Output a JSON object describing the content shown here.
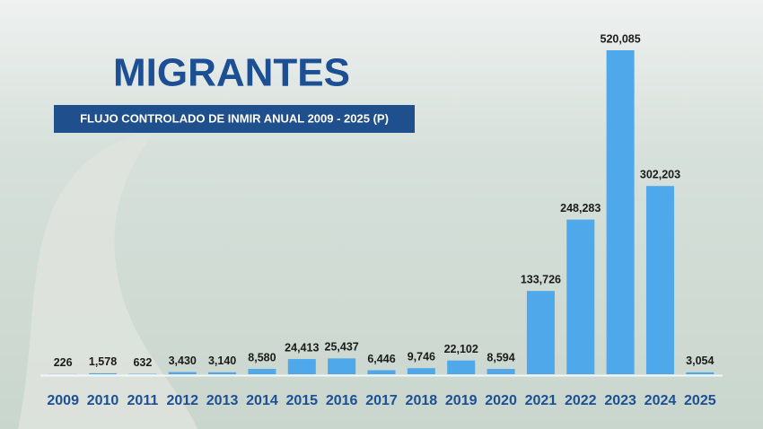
{
  "chart_data": {
    "type": "bar",
    "title": "MIGRANTES",
    "subtitle": "FLUJO CONTROLADO DE INMIR ANUAL 2009 - 2025 (P)",
    "categories": [
      "2009",
      "2010",
      "2011",
      "2012",
      "2013",
      "2014",
      "2015",
      "2016",
      "2017",
      "2018",
      "2019",
      "2020",
      "2021",
      "2022",
      "2023",
      "2024",
      "2025"
    ],
    "values": [
      226,
      1578,
      632,
      3430,
      3140,
      8580,
      24413,
      25437,
      6446,
      9746,
      22102,
      8594,
      133726,
      248283,
      520085,
      302203,
      3054
    ],
    "value_labels": [
      "226",
      "1,578",
      "632",
      "3,430",
      "3,140",
      "8,580",
      "24,413",
      "25,437",
      "6,446",
      "9,746",
      "22,102",
      "8,594",
      "133,726",
      "248,283",
      "520,085",
      "302,203",
      "3,054"
    ],
    "color": "#4ea8e9"
  }
}
